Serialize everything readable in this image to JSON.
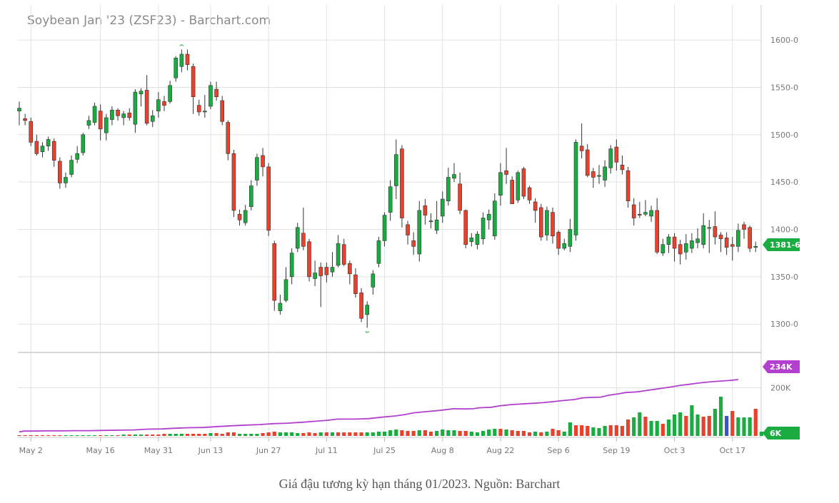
{
  "title": "Soybean Jan '23 (ZSF23) - Barchart.com",
  "caption": "Giá đậu tương kỳ hạn tháng 01/2023. Nguồn: Barchart",
  "colors": {
    "up": "#1aab41",
    "down": "#e8412c",
    "highlight_volume": "#3a55c9",
    "open_interest": "#b23fce",
    "last_badge": "#1aab41",
    "grid": "#e2e2e2"
  },
  "chart_data": {
    "type": "candlestick",
    "title": "Soybean Jan '23 (ZSF23) - Barchart.com",
    "price_axis": {
      "ticks": [
        "1600-0",
        "1550-0",
        "1500-0",
        "1450-0",
        "1400-0",
        "1350-0",
        "1300-0"
      ],
      "values": [
        1600,
        1550,
        1500,
        1450,
        1400,
        1350,
        1300
      ],
      "range": [
        1270,
        1637
      ]
    },
    "volume_axis": {
      "ticks": [
        "200K"
      ],
      "values": [
        200000
      ]
    },
    "x_ticks": [
      "May 2",
      "May 16",
      "May 31",
      "Jun 13",
      "Jun 27",
      "Jul 11",
      "Jul 25",
      "Aug 8",
      "Aug 22",
      "Sep 6",
      "Sep 19",
      "Oct 3",
      "Oct 17"
    ],
    "x_tick_bar_index": [
      2,
      14,
      24,
      33,
      43,
      53,
      63,
      73,
      83,
      93,
      103,
      113,
      123
    ],
    "last_price": "1381-6",
    "last_open_interest": "234K",
    "last_volume": "6K",
    "candles": [
      [
        1525,
        1528,
        1535,
        1510
      ],
      [
        1517,
        1515,
        1522,
        1510
      ],
      [
        1514,
        1492,
        1518,
        1488
      ],
      [
        1493,
        1480,
        1500,
        1478
      ],
      [
        1482,
        1488,
        1492,
        1476
      ],
      [
        1488,
        1495,
        1498,
        1483
      ],
      [
        1493,
        1473,
        1496,
        1466
      ],
      [
        1472,
        1449,
        1476,
        1443
      ],
      [
        1449,
        1455,
        1460,
        1444
      ],
      [
        1458,
        1473,
        1478,
        1455
      ],
      [
        1474,
        1480,
        1488,
        1470
      ],
      [
        1481,
        1500,
        1502,
        1478
      ],
      [
        1510,
        1515,
        1520,
        1506
      ],
      [
        1513,
        1530,
        1534,
        1510
      ],
      [
        1525,
        1506,
        1532,
        1494
      ],
      [
        1502,
        1518,
        1522,
        1494
      ],
      [
        1516,
        1526,
        1530,
        1510
      ],
      [
        1526,
        1520,
        1528,
        1515
      ],
      [
        1518,
        1522,
        1525,
        1510
      ],
      [
        1523,
        1518,
        1528,
        1515
      ],
      [
        1511,
        1545,
        1548,
        1502
      ],
      [
        1543,
        1546,
        1549,
        1530
      ],
      [
        1547,
        1512,
        1563,
        1510
      ],
      [
        1514,
        1520,
        1526,
        1508
      ],
      [
        1525,
        1537,
        1545,
        1518
      ],
      [
        1535,
        1531,
        1541,
        1525
      ],
      [
        1535,
        1552,
        1557,
        1533
      ],
      [
        1560,
        1581,
        1583,
        1556
      ],
      [
        1572,
        1585,
        1590,
        1566
      ],
      [
        1585,
        1574,
        1590,
        1568
      ],
      [
        1572,
        1540,
        1575,
        1522
      ],
      [
        1531,
        1524,
        1537,
        1520
      ],
      [
        1524,
        1525,
        1542,
        1518
      ],
      [
        1530,
        1552,
        1556,
        1527
      ],
      [
        1548,
        1540,
        1556,
        1536
      ],
      [
        1536,
        1514,
        1541,
        1510
      ],
      [
        1513,
        1480,
        1515,
        1473
      ],
      [
        1480,
        1420,
        1484,
        1413
      ],
      [
        1416,
        1410,
        1421,
        1404
      ],
      [
        1407,
        1420,
        1426,
        1404
      ],
      [
        1424,
        1446,
        1452,
        1420
      ],
      [
        1452,
        1476,
        1480,
        1446
      ],
      [
        1478,
        1466,
        1486,
        1456
      ],
      [
        1466,
        1399,
        1470,
        1393
      ],
      [
        1385,
        1325,
        1388,
        1314
      ],
      [
        1314,
        1322,
        1331,
        1310
      ],
      [
        1325,
        1347,
        1360,
        1323
      ],
      [
        1350,
        1375,
        1380,
        1342
      ],
      [
        1380,
        1402,
        1407,
        1376
      ],
      [
        1396,
        1382,
        1423,
        1378
      ],
      [
        1387,
        1350,
        1390,
        1345
      ],
      [
        1348,
        1354,
        1367,
        1340
      ],
      [
        1360,
        1351,
        1365,
        1318
      ],
      [
        1360,
        1352,
        1365,
        1344
      ],
      [
        1355,
        1360,
        1376,
        1350
      ],
      [
        1362,
        1385,
        1394,
        1360
      ],
      [
        1384,
        1363,
        1390,
        1361
      ],
      [
        1364,
        1353,
        1367,
        1342
      ],
      [
        1352,
        1332,
        1359,
        1328
      ],
      [
        1333,
        1306,
        1338,
        1302
      ],
      [
        1310,
        1320,
        1324,
        1296
      ],
      [
        1339,
        1353,
        1357,
        1331
      ],
      [
        1364,
        1388,
        1392,
        1360
      ],
      [
        1388,
        1415,
        1418,
        1382
      ],
      [
        1418,
        1445,
        1452,
        1409
      ],
      [
        1446,
        1479,
        1495,
        1432
      ],
      [
        1485,
        1412,
        1489,
        1402
      ],
      [
        1405,
        1394,
        1409,
        1384
      ],
      [
        1388,
        1382,
        1397,
        1373
      ],
      [
        1374,
        1420,
        1430,
        1366
      ],
      [
        1425,
        1415,
        1432,
        1405
      ],
      [
        1408,
        1409,
        1417,
        1401
      ],
      [
        1399,
        1410,
        1430,
        1395
      ],
      [
        1414,
        1432,
        1440,
        1407
      ],
      [
        1430,
        1455,
        1465,
        1425
      ],
      [
        1454,
        1458,
        1470,
        1450
      ],
      [
        1448,
        1420,
        1460,
        1416
      ],
      [
        1420,
        1384,
        1421,
        1380
      ],
      [
        1387,
        1391,
        1396,
        1382
      ],
      [
        1384,
        1395,
        1398,
        1379
      ],
      [
        1390,
        1412,
        1418,
        1384
      ],
      [
        1410,
        1416,
        1421,
        1400
      ],
      [
        1393,
        1430,
        1438,
        1389
      ],
      [
        1436,
        1460,
        1470,
        1425
      ],
      [
        1462,
        1458,
        1486,
        1448
      ],
      [
        1452,
        1427,
        1456,
        1430
      ],
      [
        1431,
        1460,
        1462,
        1428
      ],
      [
        1464,
        1435,
        1466,
        1432
      ],
      [
        1444,
        1431,
        1446,
        1427
      ],
      [
        1429,
        1420,
        1433,
        1407
      ],
      [
        1423,
        1392,
        1427,
        1388
      ],
      [
        1394,
        1420,
        1424,
        1388
      ],
      [
        1418,
        1393,
        1423,
        1385
      ],
      [
        1397,
        1380,
        1399,
        1373
      ],
      [
        1380,
        1385,
        1390,
        1378
      ],
      [
        1382,
        1400,
        1411,
        1376
      ],
      [
        1394,
        1492,
        1495,
        1388
      ],
      [
        1488,
        1483,
        1512,
        1475
      ],
      [
        1484,
        1457,
        1490,
        1455
      ],
      [
        1461,
        1455,
        1465,
        1444
      ],
      [
        1456,
        1457,
        1468,
        1448
      ],
      [
        1452,
        1466,
        1473,
        1445
      ],
      [
        1465,
        1485,
        1489,
        1459
      ],
      [
        1487,
        1471,
        1495,
        1462
      ],
      [
        1468,
        1463,
        1478,
        1458
      ],
      [
        1462,
        1430,
        1466,
        1423
      ],
      [
        1426,
        1412,
        1433,
        1404
      ],
      [
        1416,
        1415,
        1429,
        1412
      ],
      [
        1416,
        1418,
        1431,
        1414
      ],
      [
        1414,
        1420,
        1425,
        1408
      ],
      [
        1420,
        1376,
        1433,
        1374
      ],
      [
        1375,
        1384,
        1390,
        1372
      ],
      [
        1384,
        1392,
        1395,
        1375
      ],
      [
        1392,
        1380,
        1396,
        1366
      ],
      [
        1384,
        1374,
        1389,
        1363
      ],
      [
        1376,
        1385,
        1395,
        1368
      ],
      [
        1380,
        1388,
        1396,
        1375
      ],
      [
        1386,
        1390,
        1401,
        1380
      ],
      [
        1384,
        1404,
        1417,
        1380
      ],
      [
        1402,
        1402,
        1410,
        1375
      ],
      [
        1403,
        1392,
        1419,
        1384
      ],
      [
        1394,
        1390,
        1397,
        1376
      ],
      [
        1391,
        1381,
        1397,
        1373
      ],
      [
        1384,
        1382,
        1392,
        1367
      ],
      [
        1382,
        1399,
        1406,
        1376
      ],
      [
        1405,
        1400,
        1408,
        1390
      ],
      [
        1402,
        1380,
        1404,
        1376
      ],
      [
        1381,
        1382,
        1387,
        1376
      ]
    ],
    "volume_k": [
      [
        1,
        0
      ],
      [
        1,
        0
      ],
      [
        1,
        0
      ],
      [
        1,
        0
      ],
      [
        1,
        0
      ],
      [
        1,
        0
      ],
      [
        1,
        0
      ],
      [
        1,
        0
      ],
      [
        1,
        1
      ],
      [
        1,
        1
      ],
      [
        1,
        1
      ],
      [
        1,
        1
      ],
      [
        1,
        1
      ],
      [
        1,
        1
      ],
      [
        1,
        0
      ],
      [
        1,
        1
      ],
      [
        1,
        1
      ],
      [
        1,
        0
      ],
      [
        2,
        1
      ],
      [
        2,
        0
      ],
      [
        2,
        1
      ],
      [
        2,
        1
      ],
      [
        2,
        0
      ],
      [
        2,
        0
      ],
      [
        2,
        0
      ],
      [
        3,
        0
      ],
      [
        3,
        1
      ],
      [
        3,
        1
      ],
      [
        3,
        1
      ],
      [
        3,
        0
      ],
      [
        3,
        0
      ],
      [
        3,
        0
      ],
      [
        3,
        0
      ],
      [
        4,
        1
      ],
      [
        4,
        0
      ],
      [
        3,
        0
      ],
      [
        5,
        0
      ],
      [
        5,
        0
      ],
      [
        3,
        1
      ],
      [
        3,
        1
      ],
      [
        3,
        1
      ],
      [
        3,
        1
      ],
      [
        4,
        0
      ],
      [
        5,
        0
      ],
      [
        6,
        0
      ],
      [
        5,
        1
      ],
      [
        5,
        1
      ],
      [
        5,
        1
      ],
      [
        4,
        1
      ],
      [
        4,
        0
      ],
      [
        5,
        0
      ],
      [
        4,
        0
      ],
      [
        5,
        1
      ],
      [
        5,
        0
      ],
      [
        5,
        1
      ],
      [
        5,
        0
      ],
      [
        5,
        0
      ],
      [
        5,
        0
      ],
      [
        5,
        0
      ],
      [
        5,
        0
      ],
      [
        5,
        1
      ],
      [
        5,
        1
      ],
      [
        6,
        1
      ],
      [
        6,
        1
      ],
      [
        8,
        1
      ],
      [
        9,
        1
      ],
      [
        8,
        0
      ],
      [
        7,
        0
      ],
      [
        7,
        0
      ],
      [
        8,
        1
      ],
      [
        8,
        0
      ],
      [
        6,
        0
      ],
      [
        7,
        1
      ],
      [
        9,
        1
      ],
      [
        8,
        1
      ],
      [
        8,
        1
      ],
      [
        7,
        0
      ],
      [
        7,
        0
      ],
      [
        6,
        1
      ],
      [
        5,
        1
      ],
      [
        7,
        1
      ],
      [
        9,
        1
      ],
      [
        10,
        1
      ],
      [
        10,
        0
      ],
      [
        9,
        1
      ],
      [
        8,
        0
      ],
      [
        7,
        0
      ],
      [
        7,
        0
      ],
      [
        5,
        0
      ],
      [
        6,
        1
      ],
      [
        5,
        0
      ],
      [
        6,
        1
      ],
      [
        10,
        0
      ],
      [
        8,
        0
      ],
      [
        6,
        1
      ],
      [
        19,
        1
      ],
      [
        15,
        0
      ],
      [
        15,
        0
      ],
      [
        14,
        0
      ],
      [
        12,
        1
      ],
      [
        11,
        1
      ],
      [
        14,
        1
      ],
      [
        15,
        0
      ],
      [
        15,
        0
      ],
      [
        14,
        0
      ],
      [
        23,
        0
      ],
      [
        26,
        1
      ],
      [
        33,
        1
      ],
      [
        27,
        0
      ],
      [
        21,
        1
      ],
      [
        21,
        1
      ],
      [
        17,
        0
      ],
      [
        23,
        1
      ],
      [
        30,
        1
      ],
      [
        33,
        1
      ],
      [
        28,
        0
      ],
      [
        43,
        1
      ],
      [
        30,
        1
      ],
      [
        27,
        0
      ],
      [
        28,
        0
      ],
      [
        38,
        1
      ],
      [
        55,
        1
      ],
      [
        28,
        2
      ],
      [
        35,
        0
      ],
      [
        26,
        1
      ],
      [
        26,
        1
      ],
      [
        26,
        1
      ],
      [
        38,
        0
      ],
      [
        6,
        1
      ]
    ],
    "open_interest_k": [
      [
        0,
        17
      ],
      [
        3,
        20
      ],
      [
        8,
        20
      ],
      [
        17,
        21
      ],
      [
        26,
        21
      ],
      [
        34,
        22
      ],
      [
        43,
        22
      ],
      [
        52,
        23
      ],
      [
        61,
        24
      ],
      [
        69,
        25
      ],
      [
        77,
        28
      ],
      [
        86,
        29
      ],
      [
        94,
        32
      ],
      [
        102,
        34
      ],
      [
        111,
        35
      ],
      [
        120,
        39
      ],
      [
        128,
        42
      ],
      [
        137,
        45
      ],
      [
        145,
        47
      ],
      [
        153,
        51
      ],
      [
        162,
        53
      ],
      [
        171,
        57
      ],
      [
        179,
        61
      ],
      [
        186,
        65
      ],
      [
        192,
        70
      ],
      [
        203,
        70
      ],
      [
        211,
        72
      ],
      [
        219,
        78
      ],
      [
        227,
        83
      ],
      [
        233,
        89
      ],
      [
        238,
        96
      ],
      [
        246,
        101
      ],
      [
        254,
        106
      ],
      [
        262,
        113
      ],
      [
        270,
        112
      ],
      [
        274,
        113
      ],
      [
        278,
        117
      ],
      [
        285,
        119
      ],
      [
        290,
        125
      ],
      [
        297,
        130
      ],
      [
        306,
        134
      ],
      [
        316,
        138
      ],
      [
        326,
        145
      ],
      [
        330,
        148
      ],
      [
        335,
        151
      ],
      [
        340,
        158
      ],
      [
        345,
        160
      ],
      [
        351,
        161
      ],
      [
        356,
        169
      ],
      [
        362,
        175
      ],
      [
        366,
        180
      ],
      [
        373,
        183
      ],
      [
        377,
        187
      ],
      [
        382,
        192
      ],
      [
        387,
        197
      ],
      [
        393,
        203
      ],
      [
        399,
        210
      ],
      [
        404,
        214
      ],
      [
        409,
        219
      ],
      [
        413,
        222
      ],
      [
        418,
        225
      ],
      [
        424,
        228
      ],
      [
        428,
        230
      ],
      [
        431,
        232
      ],
      [
        434,
        234
      ]
    ]
  }
}
